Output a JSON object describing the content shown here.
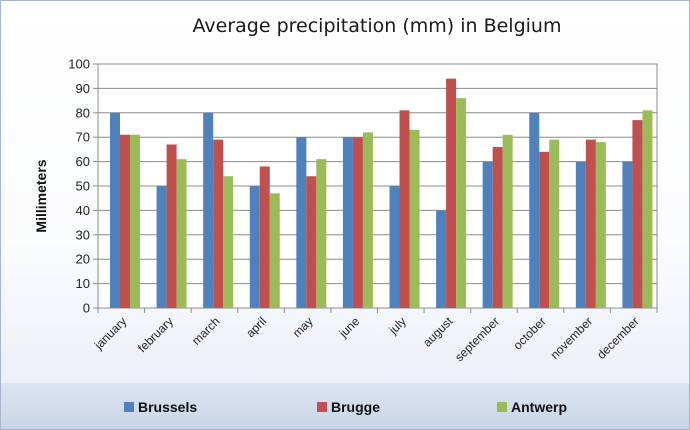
{
  "chart_data": {
    "type": "bar",
    "title": "Average precipitation (mm) in Belgium",
    "xlabel": "",
    "ylabel": "Millimeters",
    "ylim": [
      0,
      100
    ],
    "yticks": [
      0,
      10,
      20,
      30,
      40,
      50,
      60,
      70,
      80,
      90,
      100
    ],
    "grid": true,
    "legend_position": "bottom",
    "categories": [
      "january",
      "february",
      "march",
      "april",
      "may",
      "june",
      "july",
      "august",
      "september",
      "october",
      "november",
      "december"
    ],
    "series": [
      {
        "name": "Brussels",
        "color": "#4f81bd",
        "values": [
          80,
          50,
          80,
          50,
          70,
          70,
          50,
          40,
          60,
          80,
          60,
          60
        ]
      },
      {
        "name": "Brugge",
        "color": "#c0504d",
        "values": [
          71,
          67,
          69,
          58,
          54,
          70,
          81,
          94,
          66,
          64,
          69,
          77
        ]
      },
      {
        "name": "Antwerp",
        "color": "#9bbb59",
        "values": [
          71,
          61,
          54,
          47,
          61,
          72,
          73,
          86,
          71,
          69,
          68,
          81
        ]
      }
    ]
  }
}
